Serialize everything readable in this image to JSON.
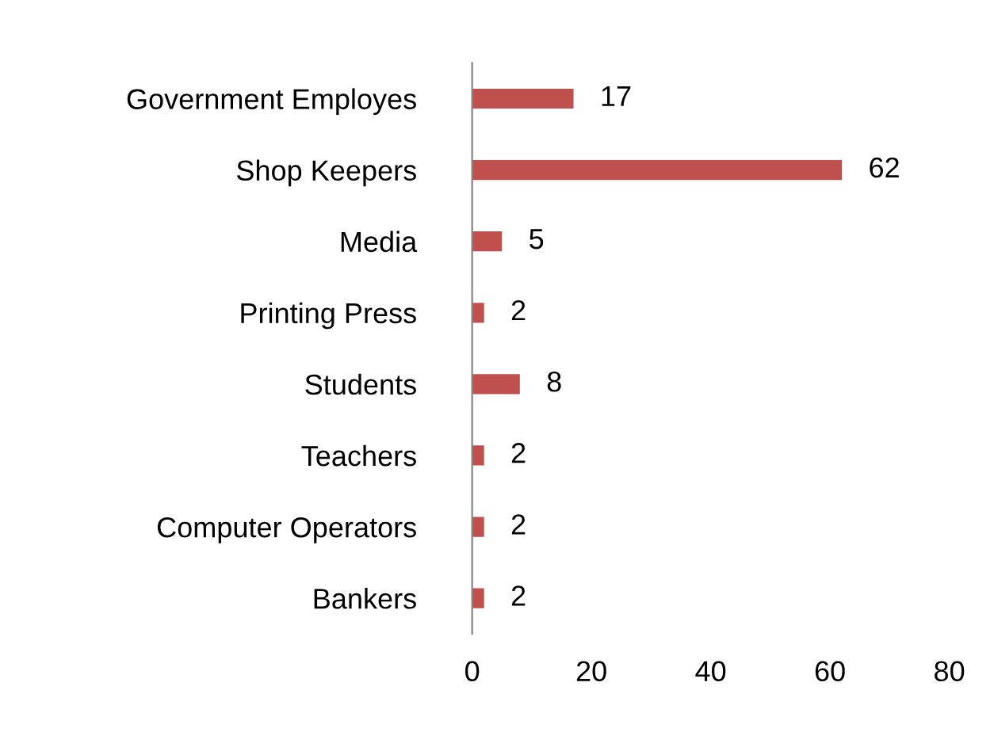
{
  "chart_data": {
    "type": "bar",
    "orientation": "horizontal",
    "categories": [
      "Government Employes",
      "Shop Keepers",
      "Media",
      "Printing Press",
      "Students",
      "Teachers",
      "Computer Operators",
      "Bankers"
    ],
    "values": [
      17,
      62,
      5,
      2,
      8,
      2,
      2,
      2
    ],
    "color": "#c0504d",
    "data_labels": true,
    "xlim": [
      0,
      80
    ],
    "xticks": [
      0,
      20,
      40,
      60,
      80
    ],
    "grid": false,
    "legend": false
  }
}
